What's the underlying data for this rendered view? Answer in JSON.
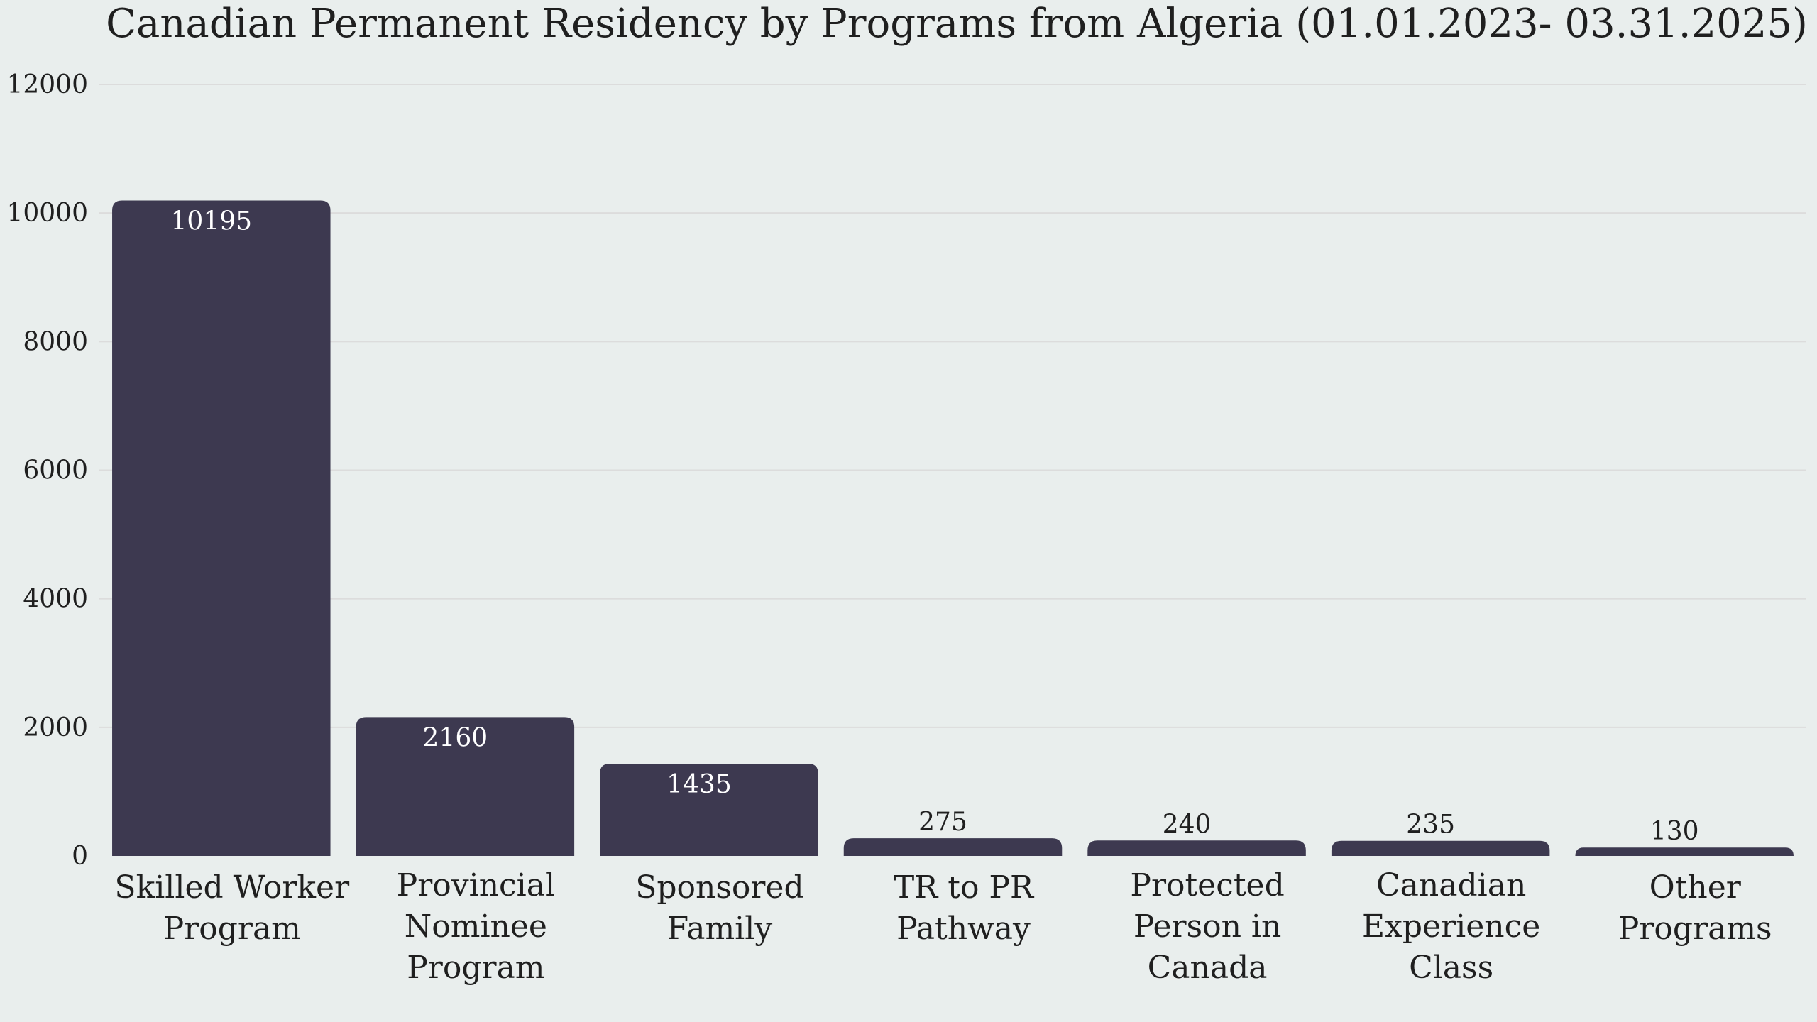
{
  "chart_data": {
    "type": "bar",
    "title": "Canadian Permanent Residency by Programs from Algeria (01.01.2023- 03.31.2025)",
    "xlabel": "",
    "ylabel": "",
    "categories": [
      [
        "Skilled Worker",
        "Program"
      ],
      [
        "Provincial",
        "Nominee",
        "Program"
      ],
      [
        "Sponsored",
        "Family"
      ],
      [
        "TR to PR",
        "Pathway"
      ],
      [
        "Protected",
        "Person in",
        "Canada"
      ],
      [
        "Canadian",
        "Experience",
        "Class"
      ],
      [
        "Other",
        "Programs"
      ]
    ],
    "values": [
      10195,
      2160,
      1435,
      275,
      240,
      235,
      130
    ],
    "value_labels": [
      "10195",
      "2160",
      "1435",
      "275",
      "240",
      "235",
      "130"
    ],
    "ylim": [
      0,
      12000
    ],
    "yticks": [
      0,
      2000,
      4000,
      6000,
      8000,
      10000,
      12000
    ],
    "ytick_labels": [
      "0",
      "2000",
      "4000",
      "6000",
      "8000",
      "10000",
      "12000"
    ],
    "grid": true,
    "legend": "none",
    "colors": {
      "bar": "#3d3950",
      "background": "#e9eeed",
      "grid": "#dcdcdc"
    }
  }
}
